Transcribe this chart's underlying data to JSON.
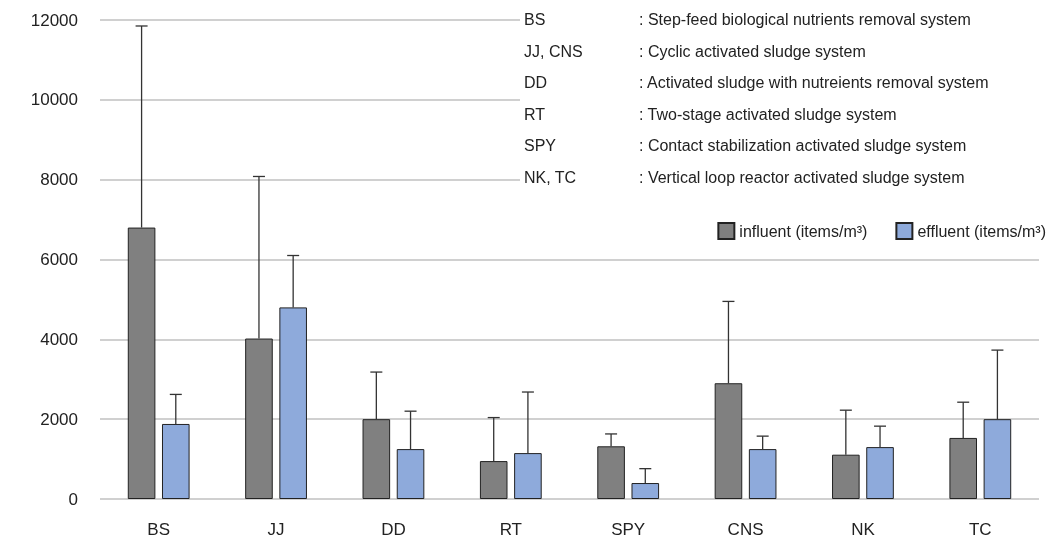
{
  "chart_data": {
    "type": "bar",
    "categories": [
      "BS",
      "JJ",
      "DD",
      "RT",
      "SPY",
      "CNS",
      "NK",
      "TC"
    ],
    "series": [
      {
        "name": "influent (items/m³)",
        "color": "#808080",
        "values": [
          6800,
          4020,
          2000,
          950,
          1320,
          2900,
          1110,
          1530
        ],
        "errors": [
          [
            6800,
            11850
          ],
          [
            4020,
            8080
          ],
          [
            2000,
            3180
          ],
          [
            950,
            2040
          ],
          [
            1320,
            1630
          ],
          [
            2900,
            4950
          ],
          [
            1110,
            2225
          ],
          [
            1530,
            2425
          ]
        ]
      },
      {
        "name": "effluent (items/m³)",
        "color": "#8eaadb",
        "values": [
          1880,
          4800,
          1250,
          1150,
          400,
          1250,
          1300,
          2000
        ],
        "errors": [
          [
            1880,
            2620
          ],
          [
            4800,
            6100
          ],
          [
            1250,
            2200
          ],
          [
            1150,
            2680
          ],
          [
            400,
            760
          ],
          [
            1250,
            1575
          ],
          [
            1300,
            1825
          ],
          [
            2000,
            3730
          ]
        ]
      }
    ],
    "ylim": [
      0,
      12000
    ],
    "yticks": [
      0,
      2000,
      4000,
      6000,
      8000,
      10000,
      12000
    ],
    "grid": "y",
    "legend": "top right",
    "annotations": [
      "BS : Step-feed biological nutrients removal system",
      "JJ, CNS : Cyclic activated sludge system",
      "DD : Activated sludge with nutreients removal system",
      "RT : Two-stage activated sludge system",
      "SPY : Contact stabilization activated sludge system",
      "NK, TC : Vertical loop reactor activated sludge system"
    ]
  }
}
